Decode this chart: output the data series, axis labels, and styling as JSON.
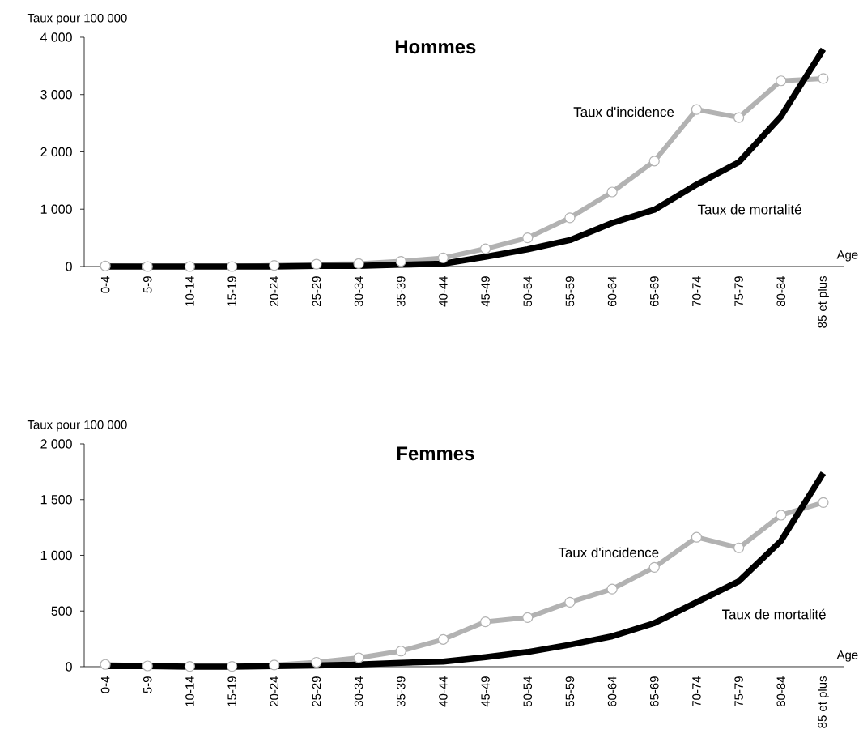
{
  "chart_data": [
    {
      "type": "line",
      "title": "Hommes",
      "xlabel": "Age",
      "ylabel": "Taux pour 100 000",
      "categories": [
        "0-4",
        "5-9",
        "10-14",
        "15-19",
        "20-24",
        "25-29",
        "30-34",
        "35-39",
        "40-44",
        "45-49",
        "50-54",
        "55-59",
        "60-64",
        "65-69",
        "70-74",
        "75-79",
        "80-84",
        "85 et plus"
      ],
      "ylim": [
        0,
        4000
      ],
      "yticks": [
        0,
        {
          "value": 1000,
          "label": "1 000"
        },
        {
          "value": 2000,
          "label": "2 000"
        },
        {
          "value": 3000,
          "label": "3 000"
        },
        {
          "value": 4000,
          "label": "4 000"
        }
      ],
      "grid": false,
      "series": [
        {
          "name": "Taux d'incidence",
          "color": "#b2b2b2",
          "marker": "circle",
          "values": [
            10,
            0,
            0,
            0,
            20,
            40,
            50,
            90,
            150,
            310,
            500,
            850,
            1300,
            1840,
            2740,
            2600,
            3240,
            3280
          ]
        },
        {
          "name": "Taux de mortalité",
          "color": "#000000",
          "marker": "none",
          "values": [
            0,
            0,
            0,
            0,
            0,
            10,
            10,
            30,
            50,
            170,
            300,
            460,
            760,
            990,
            1430,
            1820,
            2620,
            3790
          ]
        }
      ]
    },
    {
      "type": "line",
      "title": "Femmes",
      "xlabel": "Age",
      "ylabel": "Taux pour 100 000",
      "categories": [
        "0-4",
        "5-9",
        "10-14",
        "15-19",
        "20-24",
        "25-29",
        "30-34",
        "35-39",
        "40-44",
        "45-49",
        "50-54",
        "55-59",
        "60-64",
        "65-69",
        "70-74",
        "75-79",
        "80-84",
        "85 et plus"
      ],
      "ylim": [
        0,
        2000
      ],
      "yticks": [
        0,
        500,
        {
          "value": 1000,
          "label": "1 000"
        },
        {
          "value": 1500,
          "label": "1 500"
        },
        {
          "value": 2000,
          "label": "2 000"
        }
      ],
      "grid": false,
      "series": [
        {
          "name": "Taux d'incidence",
          "color": "#b2b2b2",
          "marker": "circle",
          "values": [
            20,
            7,
            3,
            3,
            15,
            40,
            80,
            140,
            245,
            403,
            441,
            579,
            697,
            892,
            1162,
            1067,
            1360,
            1474
          ]
        },
        {
          "name": "Taux de mortalité",
          "color": "#000000",
          "marker": "none",
          "values": [
            5,
            5,
            0,
            0,
            5,
            10,
            20,
            35,
            45,
            85,
            132,
            197,
            273,
            391,
            579,
            767,
            1130,
            1738
          ]
        }
      ]
    }
  ]
}
